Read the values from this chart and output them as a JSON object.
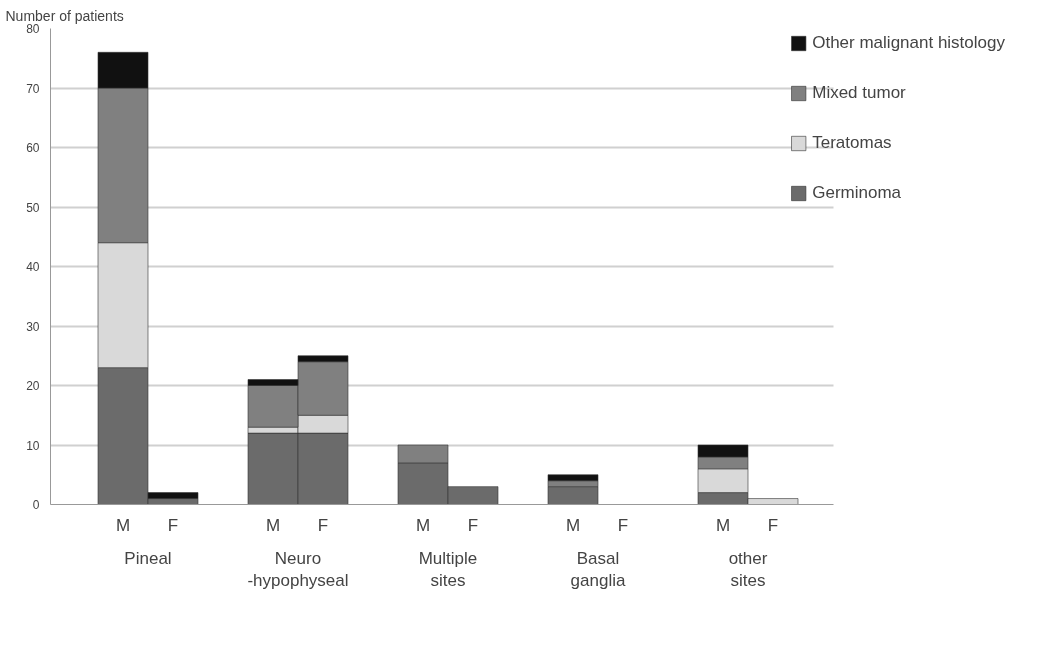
{
  "chart_data": {
    "type": "bar",
    "stacked": true,
    "ylabel": "Number of patients",
    "categories": [
      "M",
      "F",
      "M",
      "F",
      "M",
      "F",
      "M",
      "F",
      "M",
      "F"
    ],
    "annotations": [
      "Pineal",
      "Neuro\n-hypophyseal",
      "Multiple\nsites",
      "Basal\nganglia",
      "other\nsites"
    ],
    "series": [
      {
        "name": "Germinoma",
        "color": "#6b6b6b",
        "values": [
          23,
          1,
          12,
          12,
          7,
          3,
          3,
          0,
          2,
          0
        ]
      },
      {
        "name": "Teratomas",
        "color": "#d9d9d9",
        "values": [
          21,
          0,
          1,
          3,
          0,
          0,
          0,
          0,
          4,
          1
        ]
      },
      {
        "name": "Mixed tumor",
        "color": "#808080",
        "values": [
          26,
          0,
          7,
          9,
          3,
          0,
          1,
          0,
          2,
          0
        ]
      },
      {
        "name": "Other malignant histology",
        "color": "#111111",
        "values": [
          6,
          1,
          1,
          1,
          0,
          0,
          1,
          0,
          2,
          0
        ]
      }
    ],
    "ylim": [
      0,
      80
    ],
    "yticks": [
      0,
      10,
      20,
      30,
      40,
      50,
      60,
      70,
      80
    ],
    "grid": "y",
    "legend": "right"
  }
}
